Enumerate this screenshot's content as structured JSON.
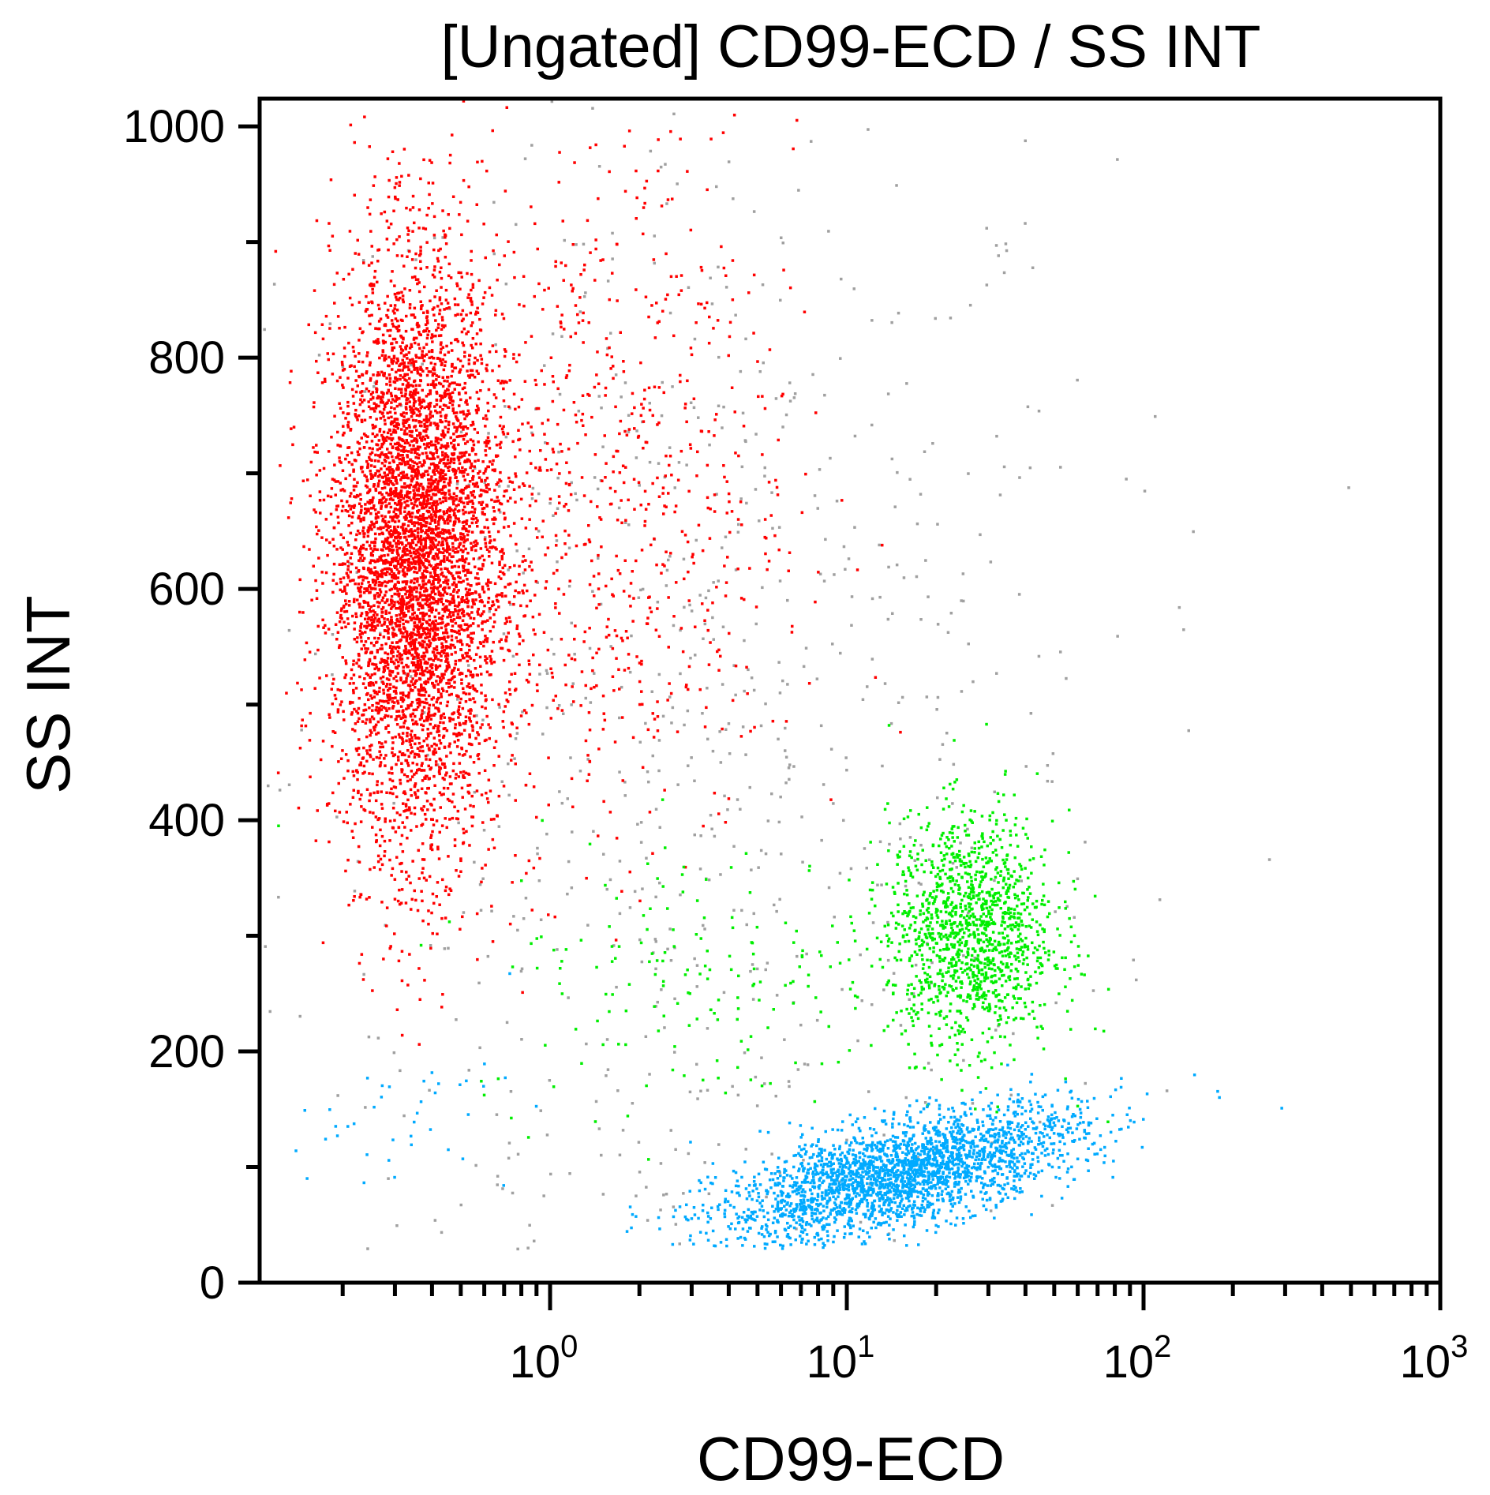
{
  "chart_data": {
    "type": "scatter",
    "title": "[Ungated] CD99-ECD / SS INT",
    "xlabel": "CD99-ECD",
    "ylabel": "SS INT",
    "xscale": "log",
    "xlim": [
      0.105,
      1000
    ],
    "ylim": [
      0,
      1024
    ],
    "x_ticks": [
      {
        "value": 1,
        "base": "10",
        "exp": "0"
      },
      {
        "value": 10,
        "base": "10",
        "exp": "1"
      },
      {
        "value": 100,
        "base": "10",
        "exp": "2"
      },
      {
        "value": 1000,
        "base": "10",
        "exp": "3"
      }
    ],
    "y_ticks": [
      0,
      200,
      400,
      600,
      800,
      1000
    ],
    "grid": false,
    "legend": "none",
    "populations": [
      {
        "color": "#ff0000",
        "count": 5200,
        "x_center": 0.35,
        "x_log_sd": 0.14,
        "y_center": 630,
        "y_sd": 125
      },
      {
        "color": "#ff0000",
        "count": 900,
        "x_center": 1.3,
        "x_log_sd": 0.35,
        "y_center": 680,
        "y_sd": 150
      },
      {
        "color": "#00ee00",
        "count": 1300,
        "x_center": 26,
        "x_log_sd": 0.14,
        "y_center": 305,
        "y_sd": 50
      },
      {
        "color": "#00ee00",
        "count": 200,
        "x_center": 4,
        "x_log_sd": 0.45,
        "y_center": 270,
        "y_sd": 60
      },
      {
        "color": "#00aaff",
        "count": 2600,
        "x_center": 15,
        "x_log_sd": 0.3,
        "y_center": 95,
        "y_sd": 22
      },
      {
        "color": "#00aaff",
        "count": 40,
        "x_center": 0.3,
        "x_log_sd": 0.2,
        "y_center": 140,
        "y_sd": 30
      },
      {
        "color": "#a0a0a0",
        "count": 900,
        "x_center": 3,
        "x_log_sd": 0.7,
        "y_center": 450,
        "y_sd": 300
      }
    ]
  }
}
